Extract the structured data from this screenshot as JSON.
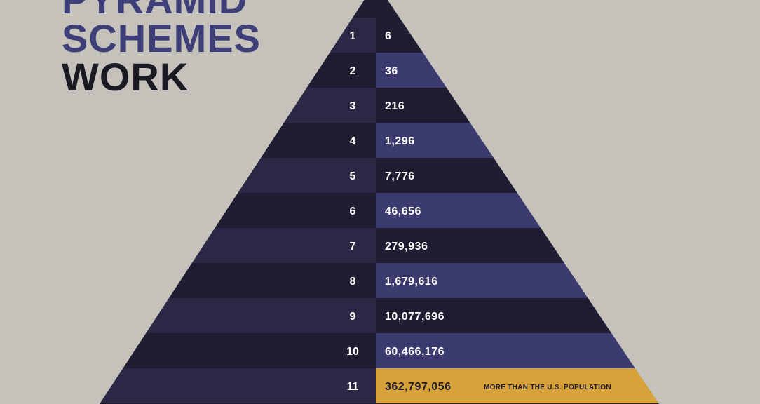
{
  "title": {
    "line1": "PYRAMID",
    "line2": "SCHEMES",
    "line3": "WORK"
  },
  "colors": {
    "background": "#c5c2bc",
    "pyramid_dark": "#1f1c2e",
    "band_light": "#2b2845",
    "band_dark": "#201d33",
    "value_band_accent": "#3c3b70",
    "highlight": "#d8a23a",
    "level_text": "#ffffff"
  },
  "levels": [
    {
      "level": "1",
      "people": "6"
    },
    {
      "level": "2",
      "people": "36"
    },
    {
      "level": "3",
      "people": "216"
    },
    {
      "level": "4",
      "people": "1,296"
    },
    {
      "level": "5",
      "people": "7,776"
    },
    {
      "level": "6",
      "people": "46,656"
    },
    {
      "level": "7",
      "people": "279,936"
    },
    {
      "level": "8",
      "people": "1,679,616"
    },
    {
      "level": "9",
      "people": "10,077,696"
    },
    {
      "level": "10",
      "people": "60,466,176"
    },
    {
      "level": "11",
      "people": "362,797,056",
      "note": "MORE THAN THE U.S. POPULATION",
      "highlight": true
    }
  ]
}
